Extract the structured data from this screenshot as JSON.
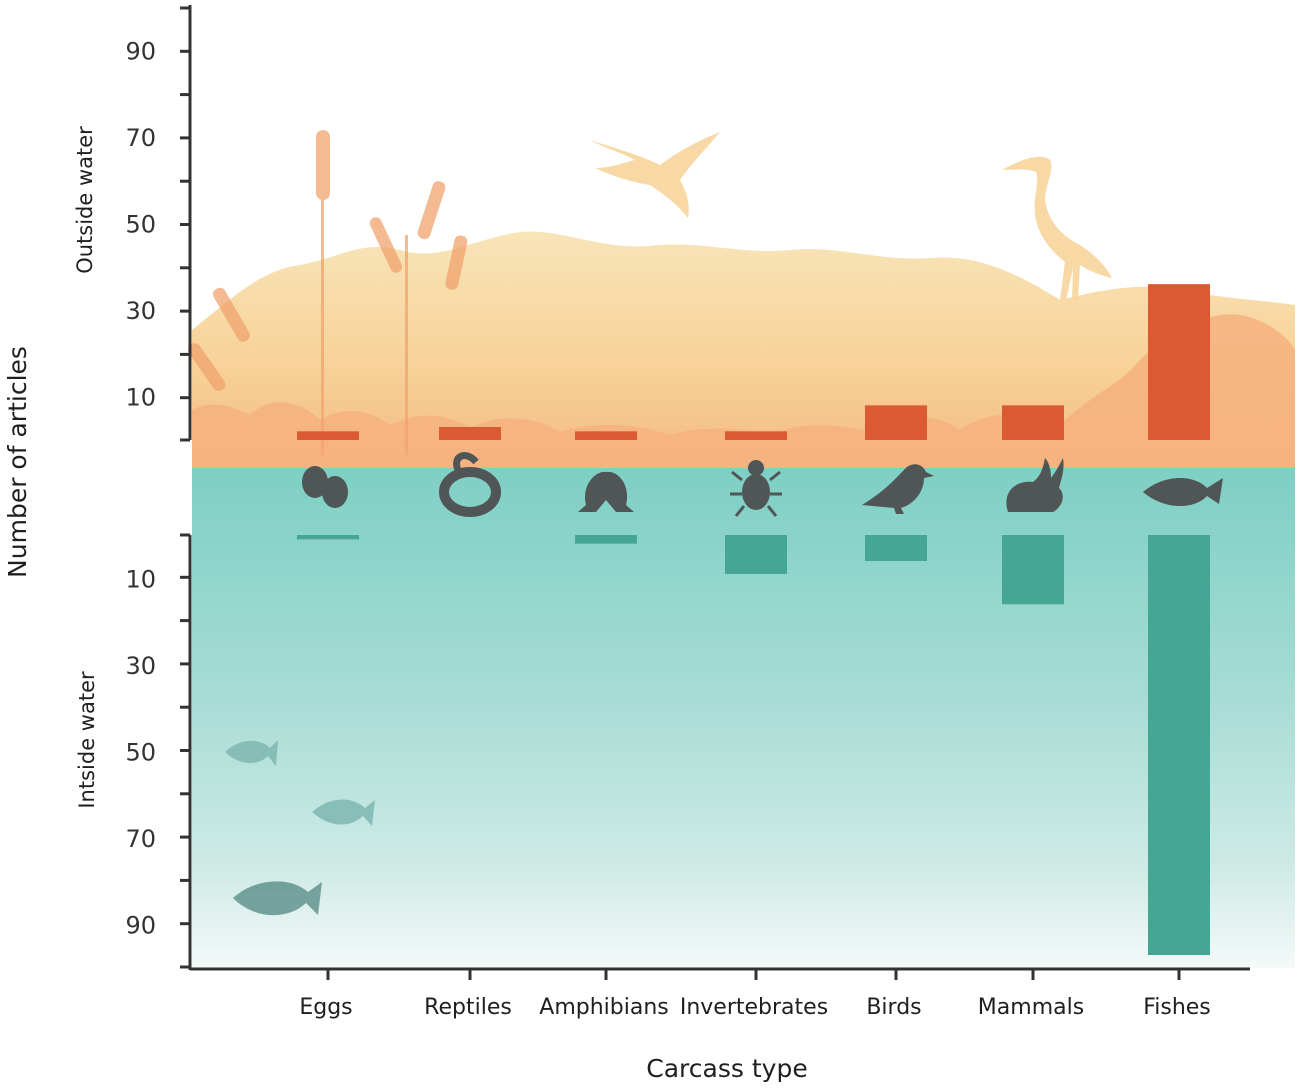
{
  "chart_data": {
    "type": "bar",
    "xlabel": "Carcass type",
    "ylabel": "Number of articles",
    "categories": [
      "Eggs",
      "Reptiles",
      "Amphibians",
      "Invertebrates",
      "Birds",
      "Mammals",
      "Fishes"
    ],
    "series": [
      {
        "name": "Outside water",
        "values": [
          2,
          3,
          2,
          2,
          8,
          8,
          36
        ]
      },
      {
        "name": "Intside water",
        "values": [
          1,
          0,
          2,
          9,
          6,
          16,
          97
        ]
      }
    ],
    "outside_ticks": [
      "10",
      "30",
      "50",
      "70",
      "90"
    ],
    "inside_ticks": [
      "10",
      "30",
      "50",
      "70",
      "90"
    ],
    "outside_ylim": [
      0,
      100
    ],
    "inside_ylim": [
      0,
      100
    ],
    "icons": [
      "egg-icon",
      "snake-icon",
      "frog-icon",
      "beetle-icon",
      "crow-icon",
      "rabbit-icon",
      "fish-icon"
    ],
    "colors": {
      "outside": "#dc5a31",
      "inside": "#44a693",
      "water": "#9ed8cf",
      "reeds": "#f6cd94",
      "axis": "#333333"
    }
  }
}
